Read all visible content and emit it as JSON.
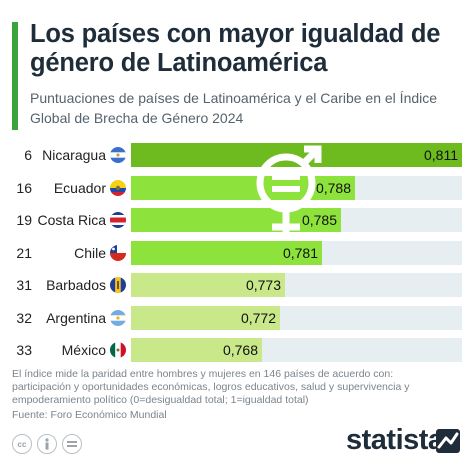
{
  "header": {
    "title": "Los países con mayor igualdad de género de Latinoamérica",
    "subtitle": "Puntuaciones de países de Latinoamérica y el Caribe en el Índice Global de Brecha de Género 2024"
  },
  "chart_data": {
    "type": "bar",
    "orientation": "horizontal",
    "categories": [
      "Nicaragua",
      "Ecuador",
      "Costa Rica",
      "Chile",
      "Barbados",
      "Argentina",
      "México"
    ],
    "ranks": [
      "6",
      "16",
      "19",
      "21",
      "31",
      "32",
      "33"
    ],
    "values": [
      0.811,
      0.788,
      0.785,
      0.781,
      0.773,
      0.772,
      0.768
    ],
    "value_labels": [
      "0,811",
      "0,788",
      "0,785",
      "0,781",
      "0,773",
      "0,772",
      "0,768"
    ],
    "xlim": [
      0,
      0.811
    ],
    "grid": false,
    "legend": "none",
    "colors": {
      "bar_top": "#6dbb1f",
      "bar_mid": "#8ee23c",
      "bar_low": "#c8e88a",
      "track": "#e6eef2",
      "icon": "#ffffff"
    },
    "flag_icons": [
      "flag-nicaragua-icon",
      "flag-ecuador-icon",
      "flag-costa-rica-icon",
      "flag-chile-icon",
      "flag-barbados-icon",
      "flag-argentina-icon",
      "flag-mexico-icon"
    ]
  },
  "footer": {
    "note": "El índice mide la paridad entre hombres y mujeres en 146 países de acuerdo con: participación y oportunidades económicas, logros educativos, salud y supervivencia y empoderamiento político (0=desigualdad total; 1=igualdad total)",
    "source": "Fuente: Foro Económico Mundial",
    "brand": "statista",
    "license_icons": [
      "cc-icon",
      "info-icon",
      "equals-icon"
    ],
    "cc_label": "cc"
  },
  "colors": {
    "accent": "#3aa33a",
    "title": "#1f2d3a",
    "subtitle": "#55636e",
    "footnote": "#7a858c"
  }
}
